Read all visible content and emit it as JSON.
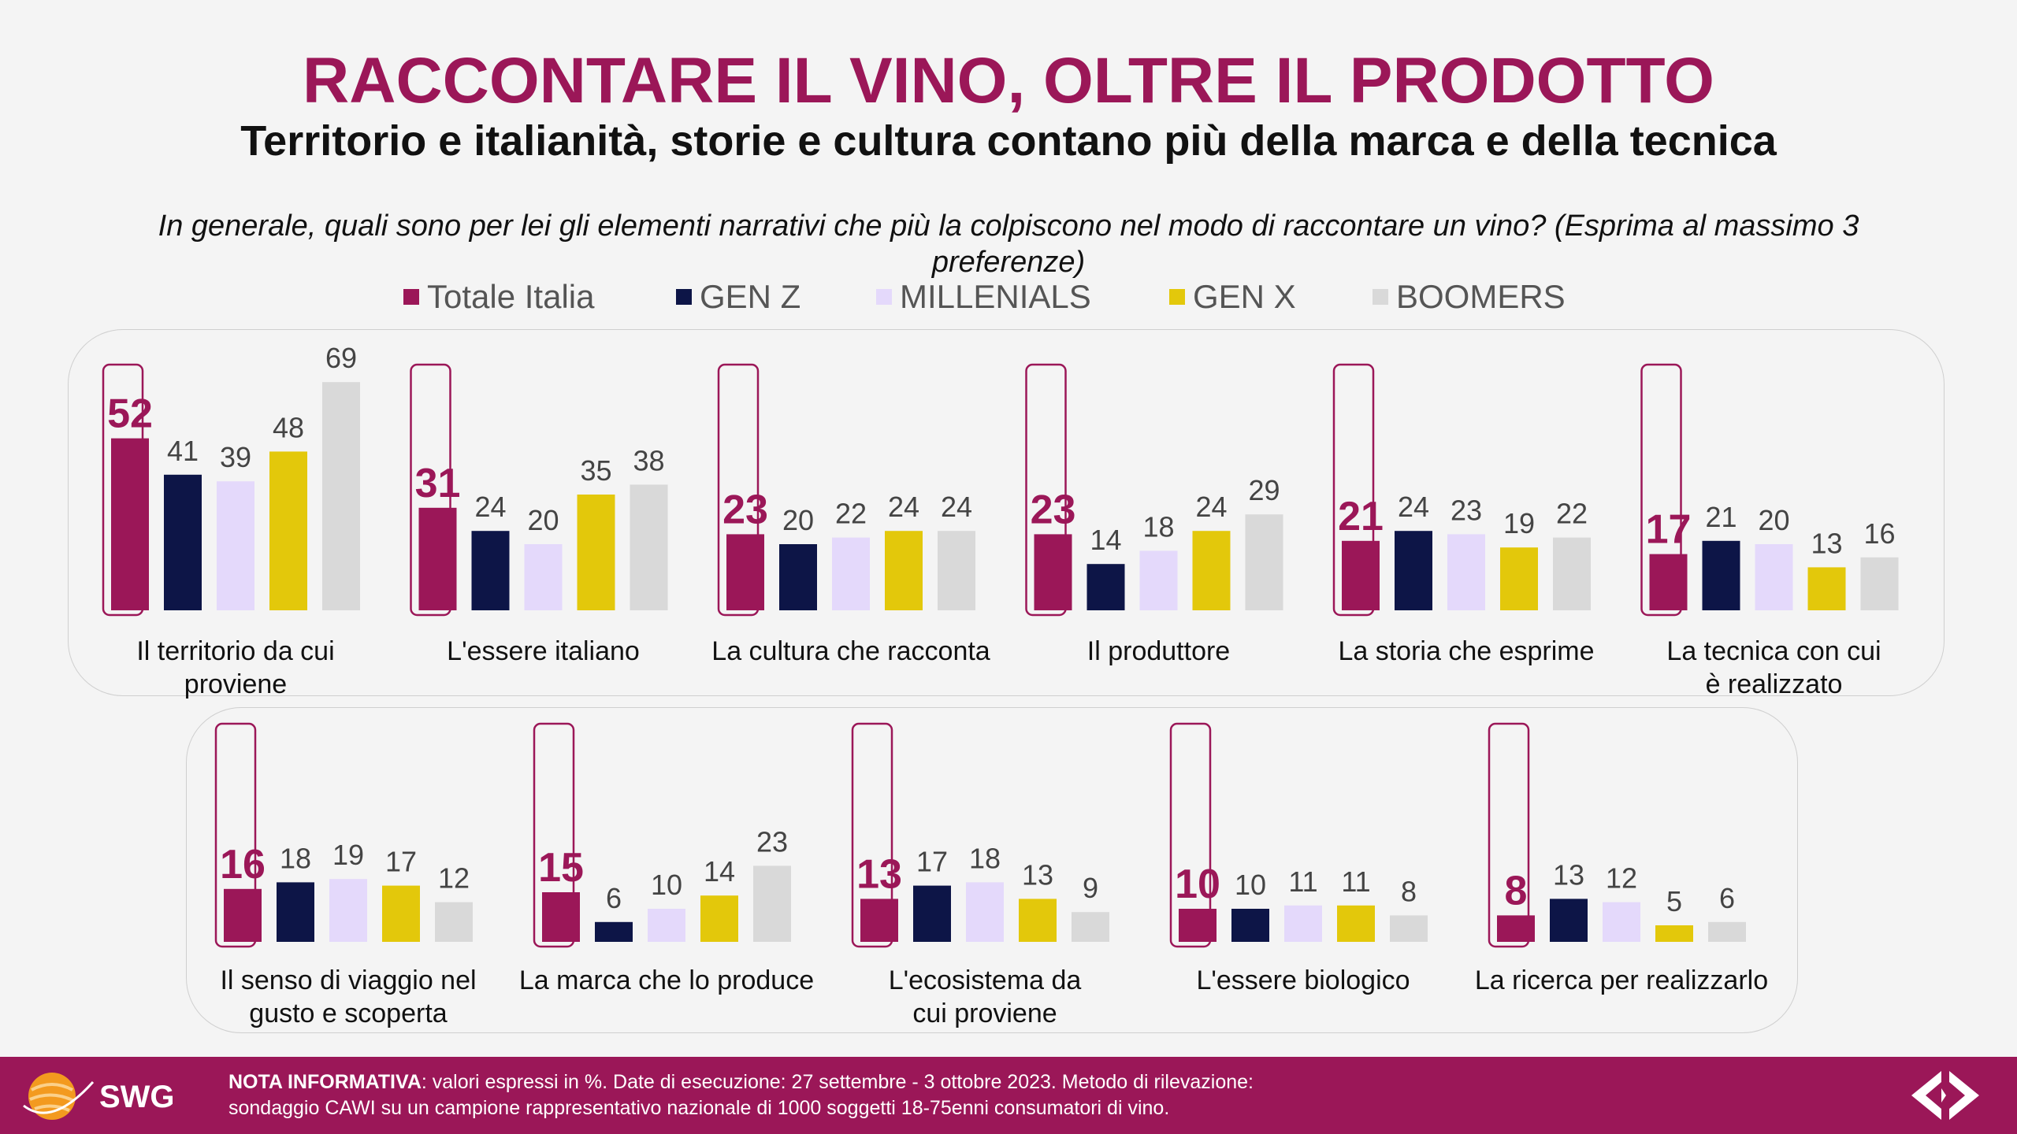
{
  "title": "RACCONTARE IL VINO, OLTRE IL PRODOTTO",
  "subtitle": "Territorio e italianità, storie e cultura contano più della marca e della tecnica",
  "question": "In generale, quali sono per lei gli elementi narrativi che più la colpiscono nel modo di raccontare un vino? (Esprima al massimo 3 preferenze)",
  "colors": {
    "accent": "#9b1758",
    "genz": "#0d1547",
    "millenials": "#e4d9fb",
    "genx": "#e3c80b",
    "boomers": "#d9d9d9"
  },
  "chart_data": {
    "type": "bar",
    "unit": "%",
    "series": [
      {
        "name": "Totale Italia",
        "color": "#9b1758"
      },
      {
        "name": "GEN Z",
        "color": "#0d1547"
      },
      {
        "name": "MILLENIALS",
        "color": "#e4d9fb"
      },
      {
        "name": "GEN X",
        "color": "#e3c80b"
      },
      {
        "name": "BOOMERS",
        "color": "#d9d9d9"
      }
    ],
    "categories": [
      {
        "label": [
          "Il territorio da cui",
          "proviene"
        ],
        "values": [
          52,
          41,
          39,
          48,
          69
        ]
      },
      {
        "label": [
          "L'essere italiano"
        ],
        "values": [
          31,
          24,
          20,
          35,
          38
        ]
      },
      {
        "label": [
          "La cultura che racconta"
        ],
        "values": [
          23,
          20,
          22,
          24,
          24
        ]
      },
      {
        "label": [
          "Il produttore"
        ],
        "values": [
          23,
          14,
          18,
          24,
          29
        ]
      },
      {
        "label": [
          "La storia che esprime"
        ],
        "values": [
          21,
          24,
          23,
          19,
          22
        ]
      },
      {
        "label": [
          "La tecnica con cui",
          "è realizzato"
        ],
        "values": [
          17,
          21,
          20,
          13,
          16
        ]
      },
      {
        "label": [
          "Il senso di viaggio nel",
          "gusto e scoperta"
        ],
        "values": [
          16,
          18,
          19,
          17,
          12
        ]
      },
      {
        "label": [
          "La marca che lo produce"
        ],
        "values": [
          15,
          6,
          10,
          14,
          23
        ]
      },
      {
        "label": [
          "L'ecosistema da",
          "cui proviene"
        ],
        "values": [
          13,
          17,
          18,
          13,
          9
        ]
      },
      {
        "label": [
          "L'essere biologico"
        ],
        "values": [
          10,
          10,
          11,
          11,
          8
        ]
      },
      {
        "label": [
          "La ricerca per realizzarlo"
        ],
        "values": [
          8,
          13,
          12,
          5,
          6
        ]
      }
    ]
  },
  "footer": {
    "note_bold": "NOTA INFORMATIVA",
    "note_text": ": valori espressi in %. Date di esecuzione: 27 settembre - 3 ottobre 2023. Metodo di rilevazione:",
    "note_line2": "sondaggio CAWI su un campione rappresentativo nazionale di 1000 soggetti 18-75enni consumatori di vino.",
    "logo_text": "SWG"
  }
}
